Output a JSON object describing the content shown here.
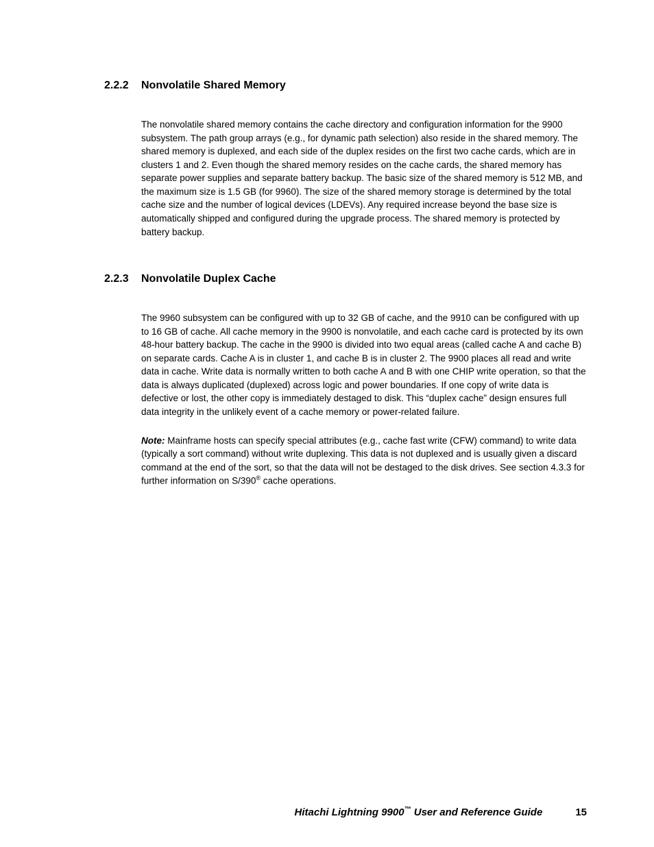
{
  "section1": {
    "number": "2.2.2",
    "title": "Nonvolatile Shared Memory",
    "paragraph": "The nonvolatile shared memory contains the cache directory and configuration information for the 9900 subsystem. The path group arrays (e.g., for dynamic path selection) also reside in the shared memory. The shared memory is duplexed, and each side of the duplex resides on the first two cache cards, which are in clusters 1 and 2. Even though the shared memory resides on the cache cards, the shared memory has separate power supplies and separate battery backup. The basic size of the shared memory is 512 MB, and the maximum size is 1.5 GB (for 9960). The size of the shared memory storage is determined by the total cache size and the number of logical devices (LDEVs). Any required increase beyond the base size is automatically shipped and configured during the upgrade process. The shared memory is protected by battery backup."
  },
  "section2": {
    "number": "2.2.3",
    "title": "Nonvolatile Duplex Cache",
    "paragraph1": "The 9960 subsystem can be configured with up to 32 GB of cache, and the 9910 can be configured with up to 16 GB of cache. All cache memory in the 9900 is nonvolatile, and each cache card is protected by its own 48-hour battery backup. The cache in the 9900 is divided into two equal areas (called cache A and cache B) on separate cards. Cache A is in cluster 1, and cache B is in cluster 2. The 9900 places all read and write data in cache. Write data is normally written to both cache A and B with one CHIP write operation, so that the data is always duplicated (duplexed) across logic and power boundaries. If one copy of write data is defective or lost, the other copy is immediately destaged to disk. This “duplex cache” design ensures full data integrity in the unlikely event of a cache memory or power-related failure.",
    "note_label": "Note:",
    "note_text_before": " Mainframe hosts can specify special attributes (e.g., cache fast write (CFW) command) to write data (typically a sort command) without write duplexing. This data is not duplexed and is usually given a discard command at the end of the sort, so that the data will not be destaged to the disk drives. See section 4.3.3 for further information on S/390",
    "note_sup": "®",
    "note_text_after": " cache operations."
  },
  "footer": {
    "title_prefix": "Hitachi Lightning 9900",
    "title_tm": "™",
    "title_suffix": " User and Reference Guide",
    "page_number": "15"
  }
}
